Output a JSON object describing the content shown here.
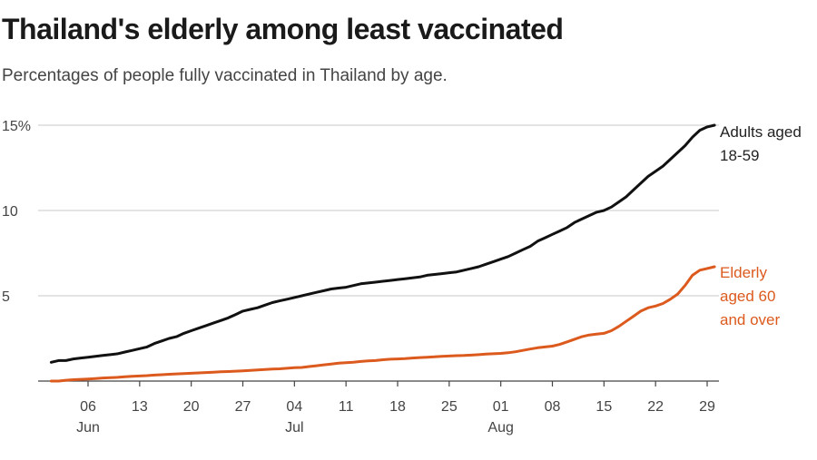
{
  "title": "Thailand's elderly among least vaccinated",
  "subtitle": "Percentages of people fully vaccinated in Thailand by age.",
  "chart_data": {
    "type": "line",
    "title": "Thailand's elderly among least vaccinated",
    "subtitle": "Percentages of people fully vaccinated in Thailand by age.",
    "xlabel": "",
    "ylabel": "",
    "ylim": [
      0,
      15
    ],
    "y_ticks": [
      {
        "value": 15,
        "label": "15%"
      },
      {
        "value": 10,
        "label": "10"
      },
      {
        "value": 5,
        "label": "5"
      }
    ],
    "x_ticks": [
      {
        "date": "2021-06-06",
        "label": "06",
        "month": "Jun"
      },
      {
        "date": "2021-06-13",
        "label": "13",
        "month": ""
      },
      {
        "date": "2021-06-20",
        "label": "20",
        "month": ""
      },
      {
        "date": "2021-06-27",
        "label": "27",
        "month": ""
      },
      {
        "date": "2021-07-04",
        "label": "04",
        "month": "Jul"
      },
      {
        "date": "2021-07-11",
        "label": "11",
        "month": ""
      },
      {
        "date": "2021-07-18",
        "label": "18",
        "month": ""
      },
      {
        "date": "2021-07-25",
        "label": "25",
        "month": ""
      },
      {
        "date": "2021-08-01",
        "label": "01",
        "month": "Aug"
      },
      {
        "date": "2021-08-08",
        "label": "08",
        "month": ""
      },
      {
        "date": "2021-08-15",
        "label": "15",
        "month": ""
      },
      {
        "date": "2021-08-22",
        "label": "22",
        "month": ""
      },
      {
        "date": "2021-08-29",
        "label": "29",
        "month": ""
      }
    ],
    "grid": true,
    "x": [
      "2021-06-01",
      "2021-06-02",
      "2021-06-03",
      "2021-06-04",
      "2021-06-05",
      "2021-06-06",
      "2021-06-07",
      "2021-06-08",
      "2021-06-09",
      "2021-06-10",
      "2021-06-11",
      "2021-06-12",
      "2021-06-13",
      "2021-06-14",
      "2021-06-15",
      "2021-06-16",
      "2021-06-17",
      "2021-06-18",
      "2021-06-19",
      "2021-06-20",
      "2021-06-21",
      "2021-06-22",
      "2021-06-23",
      "2021-06-24",
      "2021-06-25",
      "2021-06-26",
      "2021-06-27",
      "2021-06-28",
      "2021-06-29",
      "2021-06-30",
      "2021-07-01",
      "2021-07-02",
      "2021-07-03",
      "2021-07-04",
      "2021-07-05",
      "2021-07-06",
      "2021-07-07",
      "2021-07-08",
      "2021-07-09",
      "2021-07-10",
      "2021-07-11",
      "2021-07-12",
      "2021-07-13",
      "2021-07-14",
      "2021-07-15",
      "2021-07-16",
      "2021-07-17",
      "2021-07-18",
      "2021-07-19",
      "2021-07-20",
      "2021-07-21",
      "2021-07-22",
      "2021-07-23",
      "2021-07-24",
      "2021-07-25",
      "2021-07-26",
      "2021-07-27",
      "2021-07-28",
      "2021-07-29",
      "2021-07-30",
      "2021-07-31",
      "2021-08-01",
      "2021-08-02",
      "2021-08-03",
      "2021-08-04",
      "2021-08-05",
      "2021-08-06",
      "2021-08-07",
      "2021-08-08",
      "2021-08-09",
      "2021-08-10",
      "2021-08-11",
      "2021-08-12",
      "2021-08-13",
      "2021-08-14",
      "2021-08-15",
      "2021-08-16",
      "2021-08-17",
      "2021-08-18",
      "2021-08-19",
      "2021-08-20",
      "2021-08-21",
      "2021-08-22",
      "2021-08-23",
      "2021-08-24",
      "2021-08-25",
      "2021-08-26",
      "2021-08-27",
      "2021-08-28",
      "2021-08-29",
      "2021-08-30"
    ],
    "series": [
      {
        "name": "Adults aged 18-59",
        "label_lines": [
          "Adults aged",
          "18-59"
        ],
        "color": "#111111",
        "values": [
          1.1,
          1.2,
          1.2,
          1.3,
          1.35,
          1.4,
          1.45,
          1.5,
          1.55,
          1.6,
          1.7,
          1.8,
          1.9,
          2.0,
          2.2,
          2.35,
          2.5,
          2.6,
          2.8,
          2.95,
          3.1,
          3.25,
          3.4,
          3.55,
          3.7,
          3.9,
          4.1,
          4.2,
          4.3,
          4.45,
          4.6,
          4.7,
          4.8,
          4.9,
          5.0,
          5.1,
          5.2,
          5.3,
          5.4,
          5.45,
          5.5,
          5.6,
          5.7,
          5.75,
          5.8,
          5.85,
          5.9,
          5.95,
          6.0,
          6.05,
          6.1,
          6.2,
          6.25,
          6.3,
          6.35,
          6.4,
          6.5,
          6.6,
          6.7,
          6.85,
          7.0,
          7.15,
          7.3,
          7.5,
          7.7,
          7.9,
          8.2,
          8.4,
          8.6,
          8.8,
          9.0,
          9.3,
          9.5,
          9.7,
          9.9,
          10.0,
          10.2,
          10.5,
          10.8,
          11.2,
          11.6,
          12.0,
          12.3,
          12.6,
          13.0,
          13.4,
          13.8,
          14.3,
          14.7,
          14.9,
          15.0
        ]
      },
      {
        "name": "Elderly aged 60 and over",
        "label_lines": [
          "Elderly",
          "aged 60",
          "and over"
        ],
        "color": "#dc5a1e",
        "values": [
          0.0,
          0.0,
          0.05,
          0.08,
          0.1,
          0.12,
          0.15,
          0.18,
          0.2,
          0.22,
          0.25,
          0.28,
          0.3,
          0.32,
          0.35,
          0.37,
          0.4,
          0.42,
          0.44,
          0.46,
          0.48,
          0.5,
          0.52,
          0.54,
          0.56,
          0.58,
          0.6,
          0.62,
          0.65,
          0.68,
          0.7,
          0.72,
          0.75,
          0.78,
          0.8,
          0.85,
          0.9,
          0.95,
          1.0,
          1.05,
          1.08,
          1.1,
          1.15,
          1.18,
          1.2,
          1.25,
          1.28,
          1.3,
          1.32,
          1.35,
          1.38,
          1.4,
          1.42,
          1.45,
          1.47,
          1.49,
          1.5,
          1.52,
          1.55,
          1.58,
          1.6,
          1.62,
          1.66,
          1.72,
          1.8,
          1.88,
          1.95,
          2.0,
          2.05,
          2.15,
          2.3,
          2.45,
          2.6,
          2.7,
          2.75,
          2.8,
          2.95,
          3.2,
          3.5,
          3.8,
          4.1,
          4.3,
          4.4,
          4.55,
          4.8,
          5.1,
          5.6,
          6.2,
          6.5,
          6.6,
          6.7
        ]
      }
    ]
  }
}
